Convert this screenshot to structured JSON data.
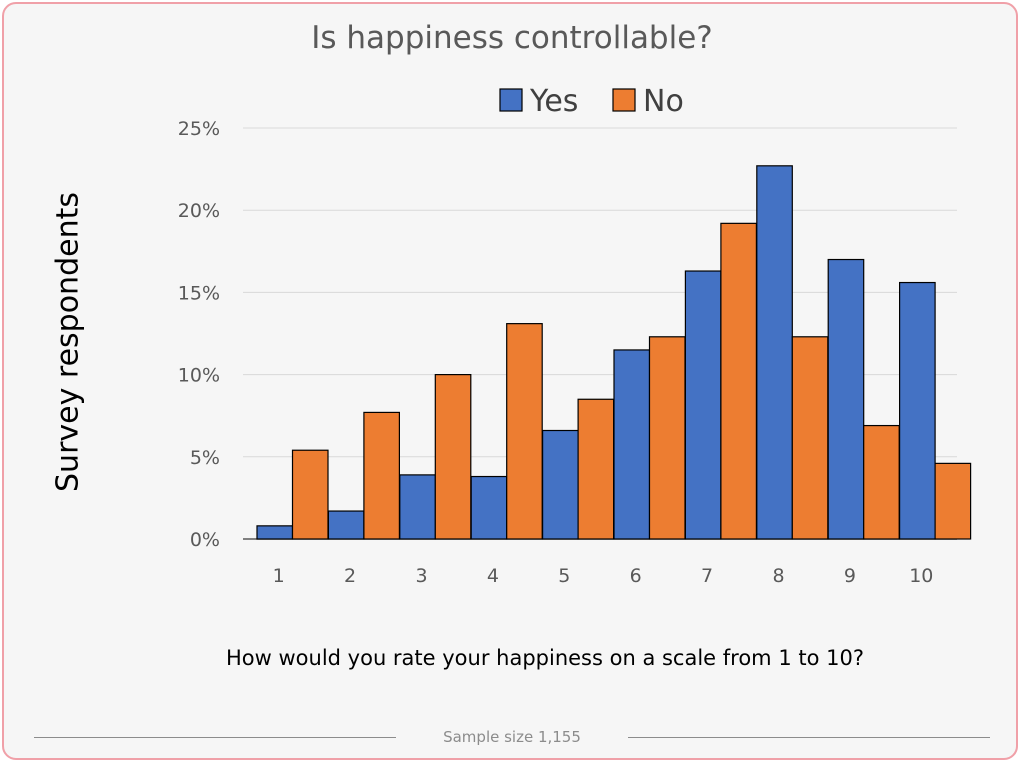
{
  "chart_data": {
    "type": "bar",
    "title": "Is happiness controllable?",
    "xlabel": "How would you rate your happiness on a scale from 1 to 10?",
    "ylabel": "Survey respondents",
    "categories": [
      "1",
      "2",
      "3",
      "4",
      "5",
      "6",
      "7",
      "8",
      "9",
      "10"
    ],
    "series": [
      {
        "name": "Yes",
        "color": "#4472c4",
        "values": [
          0.8,
          1.7,
          3.9,
          3.8,
          6.6,
          11.5,
          16.3,
          22.7,
          17.0,
          15.6
        ]
      },
      {
        "name": "No",
        "color": "#ed7d31",
        "values": [
          5.4,
          7.7,
          10.0,
          13.1,
          8.5,
          12.3,
          19.2,
          12.3,
          6.9,
          4.6
        ]
      }
    ],
    "ylim": [
      0,
      25
    ],
    "yticks": [
      "0%",
      "5%",
      "10%",
      "15%",
      "20%",
      "25%"
    ],
    "ytick_values": [
      0,
      5,
      10,
      15,
      20,
      25
    ],
    "grid": true,
    "legend": "top"
  },
  "footer": {
    "note": "Sample size 1,155"
  }
}
